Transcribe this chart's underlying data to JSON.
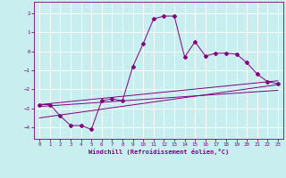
{
  "title": "",
  "xlabel": "Windchill (Refroidissement éolien,°C)",
  "ylabel": "",
  "background_color": "#c8eef0",
  "line_color": "#800080",
  "grid_color": "#ffffff",
  "xlim": [
    -0.5,
    23.5
  ],
  "ylim": [
    -4.6,
    2.6
  ],
  "yticks": [
    -4,
    -3,
    -2,
    -1,
    0,
    1,
    2
  ],
  "xticks": [
    0,
    1,
    2,
    3,
    4,
    5,
    6,
    7,
    8,
    9,
    10,
    11,
    12,
    13,
    14,
    15,
    16,
    17,
    18,
    19,
    20,
    21,
    22,
    23
  ],
  "series1_x": [
    0,
    1,
    2,
    3,
    4,
    5,
    6,
    7,
    8,
    9,
    10,
    11,
    12,
    13,
    14,
    15,
    16,
    17,
    18,
    19,
    20,
    21,
    22,
    23
  ],
  "series1_y": [
    -2.8,
    -2.8,
    -3.4,
    -3.9,
    -3.9,
    -4.1,
    -2.6,
    -2.5,
    -2.6,
    -0.8,
    0.4,
    1.7,
    1.85,
    1.85,
    -0.3,
    0.5,
    -0.25,
    -0.1,
    -0.1,
    -0.15,
    -0.6,
    -1.2,
    -1.6,
    -1.7
  ],
  "line1_x": [
    0,
    23
  ],
  "line1_y": [
    -2.8,
    -1.55
  ],
  "line2_x": [
    0,
    23
  ],
  "line2_y": [
    -2.9,
    -2.05
  ],
  "line3_x": [
    0,
    23
  ],
  "line3_y": [
    -3.5,
    -1.75
  ]
}
